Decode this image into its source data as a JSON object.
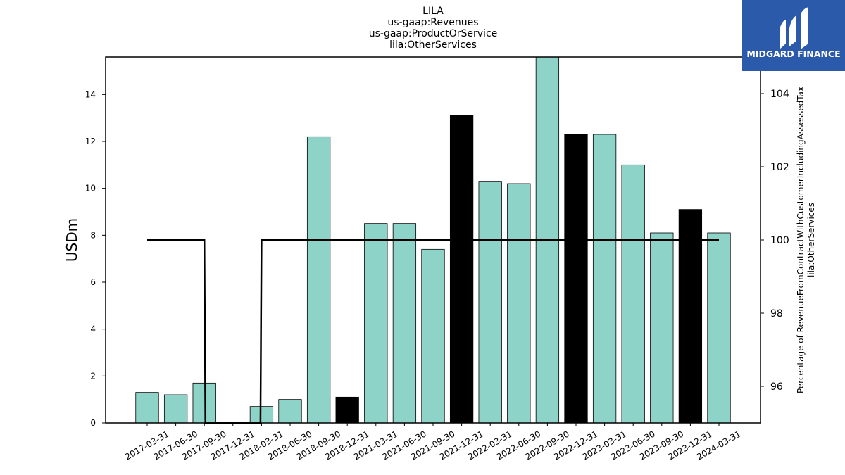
{
  "chart_data": {
    "type": "bar",
    "title_lines": [
      "LILA",
      "us-gaap:Revenues",
      "us-gaap:ProductOrService",
      "lila:OtherServices"
    ],
    "ylabel": "USDm",
    "y2label_lines": [
      "Percentage of RevenueFromContractWithCustomerIncludingAssessedTax",
      "lila:OtherServices"
    ],
    "categories": [
      "2017-03-31",
      "2017-06-30",
      "2017-09-30",
      "2017-12-31",
      "2018-03-31",
      "2018-06-30",
      "2018-09-30",
      "2018-12-31",
      "2021-03-31",
      "2021-06-30",
      "2021-09-30",
      "2021-12-31",
      "2022-03-31",
      "2022-06-30",
      "2022-09-30",
      "2022-12-31",
      "2023-03-31",
      "2023-06-30",
      "2023-09-30",
      "2023-12-31",
      "2024-03-31"
    ],
    "values": [
      1.3,
      1.2,
      1.7,
      0,
      0.7,
      1.0,
      12.2,
      1.1,
      8.5,
      8.5,
      7.4,
      13.1,
      10.3,
      10.2,
      15.6,
      12.3,
      12.3,
      11.0,
      8.1,
      9.1,
      8.1
    ],
    "highlight": [
      false,
      false,
      false,
      false,
      false,
      false,
      false,
      true,
      false,
      false,
      false,
      true,
      false,
      false,
      false,
      true,
      false,
      false,
      false,
      true,
      false
    ],
    "ylim": [
      0,
      15.6
    ],
    "yticks": [
      0,
      2,
      4,
      6,
      8,
      10,
      12,
      14
    ],
    "line_series": {
      "values": [
        100,
        100,
        100,
        null,
        100,
        100,
        100,
        100,
        100,
        100,
        100,
        100,
        100,
        100,
        100,
        100,
        100,
        100,
        100,
        100,
        100
      ],
      "drop_to": 95
    },
    "y2lim": [
      95,
      105
    ],
    "y2ticks": [
      96,
      98,
      100,
      102,
      104
    ],
    "colors": {
      "bar": "#8dd3c7",
      "highlight_bar": "#000000",
      "line": "#000000"
    }
  },
  "logo": {
    "text": "MIDGARD FINANCE",
    "background": "#2c5aab"
  }
}
